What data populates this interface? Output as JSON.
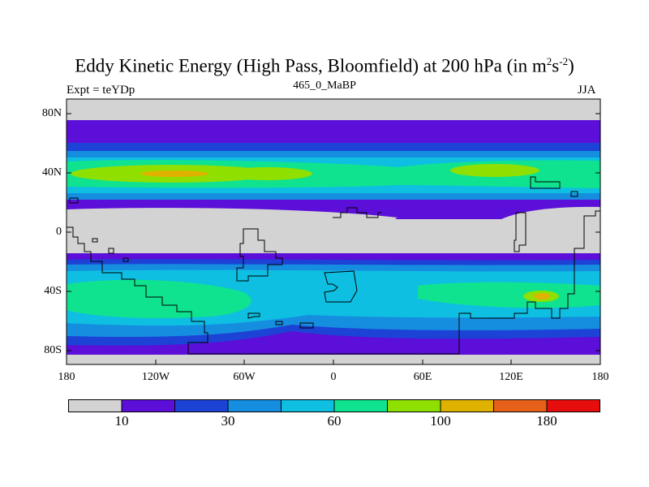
{
  "title": {
    "main": "Eddy Kinetic Energy (High Pass, Bloomfield) at 200 hPa (in m",
    "sup1": "2",
    "mid": "s",
    "sup2": "-2",
    "close": ")"
  },
  "subtitle": "465_0_MaBP",
  "left_label": "Expt = teYDp",
  "right_label": "JJA",
  "lat_labels": [
    "80N",
    "40N",
    "0",
    "40S",
    "80S"
  ],
  "lon_labels": [
    "180",
    "120W",
    "60W",
    "0",
    "60E",
    "120E",
    "180"
  ],
  "colorbar": {
    "colors": [
      "#d3d3d3",
      "#5b0fd8",
      "#1c43d6",
      "#168ee0",
      "#0ebfe2",
      "#0fe38f",
      "#8fe000",
      "#e0b200",
      "#e6601a",
      "#e60d0d"
    ],
    "labels": [
      "10",
      "30",
      "60",
      "100",
      "180"
    ]
  },
  "map_colors": {
    "ocean_grey": "#d3d3d3",
    "level1": "#5b0fd8",
    "level2": "#1c43d6",
    "level3": "#168ee0",
    "level4": "#0ebfe2",
    "level5": "#0fe38f",
    "level6": "#8fe000",
    "level7": "#e0b200"
  }
}
